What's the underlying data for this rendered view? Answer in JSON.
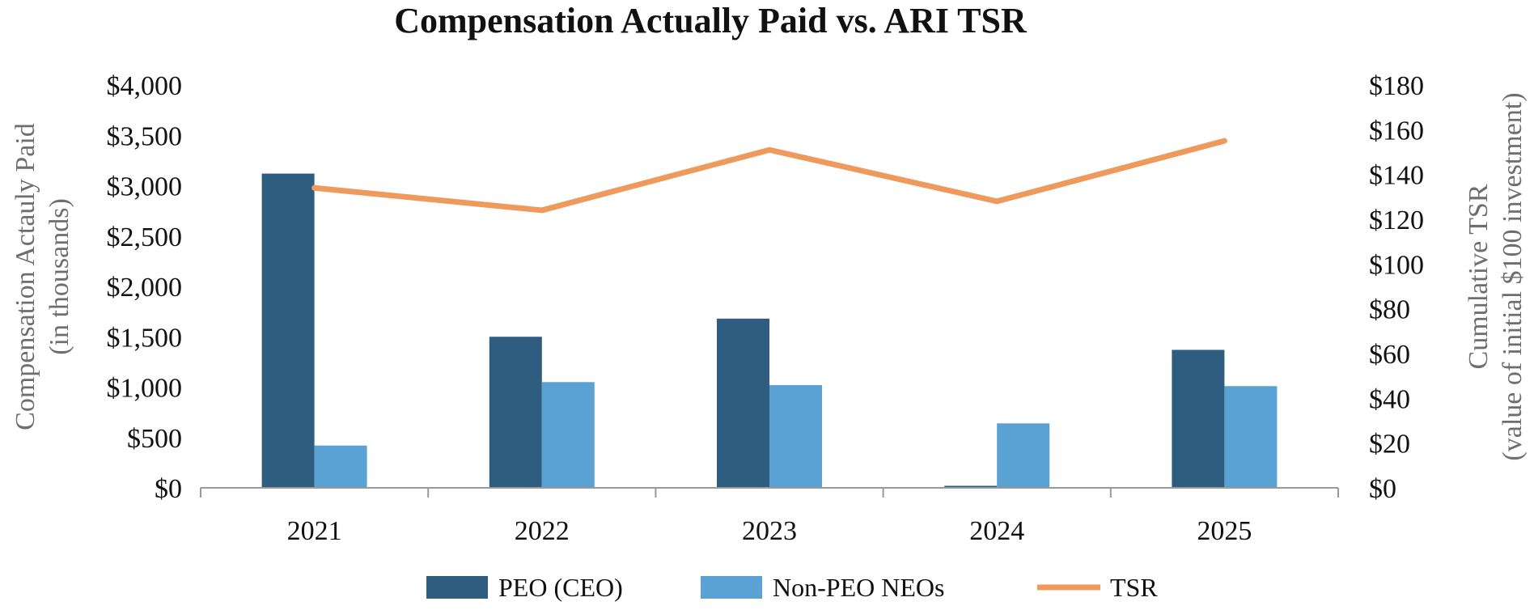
{
  "chart_data": {
    "type": "bar",
    "title": "Compensation Actually Paid vs. ARI TSR",
    "categories": [
      "2021",
      "2022",
      "2023",
      "2024",
      "2025"
    ],
    "ylabel": [
      "Compensation Actauly Paid",
      "(in thousands)"
    ],
    "y2label": [
      "Cumulative TSR",
      "(value of initial $100 investment)"
    ],
    "ylim": [
      0,
      4000
    ],
    "y2lim": [
      0,
      180
    ],
    "yticks": [
      "$0",
      "$500",
      "$1,000",
      "$1,500",
      "$2,000",
      "$2,500",
      "$3,000",
      "$3,500",
      "$4,000"
    ],
    "y2ticks": [
      "$0",
      "$20",
      "$40",
      "$60",
      "$80",
      "$100",
      "$120",
      "$140",
      "$160",
      "$180"
    ],
    "grid": false,
    "legend_position": "bottom",
    "series": [
      {
        "name": "PEO (CEO)",
        "type": "bar",
        "axis": "left",
        "color": "#2f5d80",
        "values": [
          3120,
          1500,
          1680,
          20,
          1370
        ]
      },
      {
        "name": "Non-PEO NEOs",
        "type": "bar",
        "axis": "left",
        "color": "#5aa2d4",
        "values": [
          420,
          1050,
          1020,
          640,
          1010
        ]
      },
      {
        "name": "TSR",
        "type": "line",
        "axis": "right",
        "color": "#ef9a5d",
        "values": [
          134,
          124,
          151,
          128,
          155
        ]
      }
    ]
  }
}
